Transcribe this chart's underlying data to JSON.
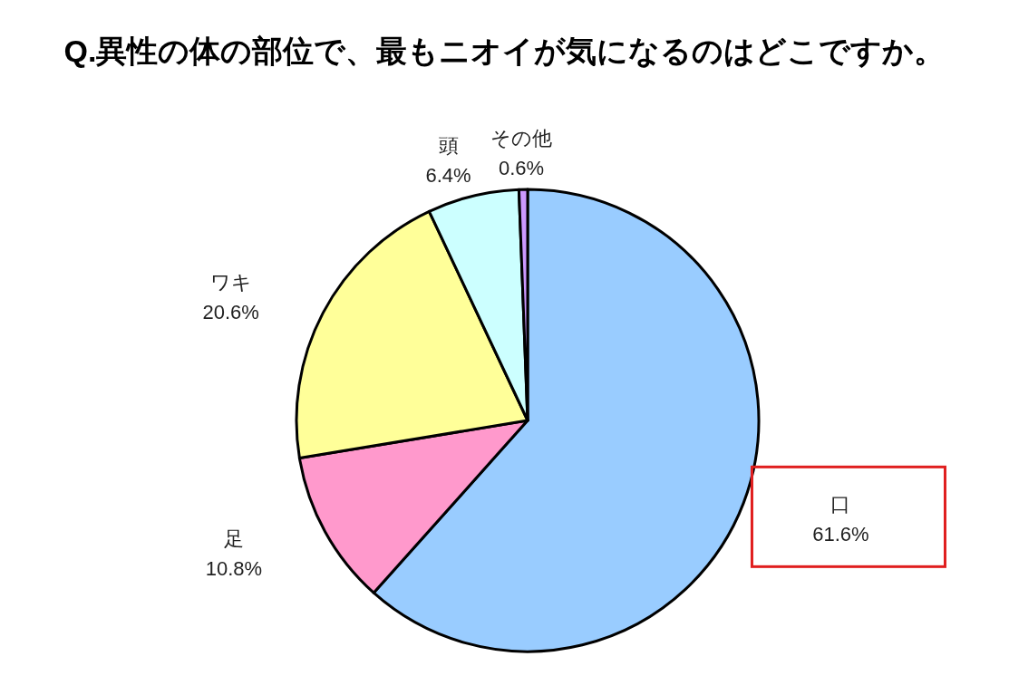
{
  "chart_data": {
    "type": "pie",
    "title": "Q.異性の体の部位で、最もニオイが気になるのはどこですか。",
    "categories": [
      "口",
      "足",
      "ワキ",
      "頭",
      "その他"
    ],
    "values": [
      61.6,
      10.8,
      20.6,
      6.4,
      0.6
    ],
    "colors": [
      "#99ccff",
      "#ff99cc",
      "#ffff99",
      "#ccffff",
      "#cc99ff"
    ],
    "value_labels": [
      "61.6%",
      "10.8%",
      "20.6%",
      "6.4%",
      "0.6%"
    ]
  }
}
